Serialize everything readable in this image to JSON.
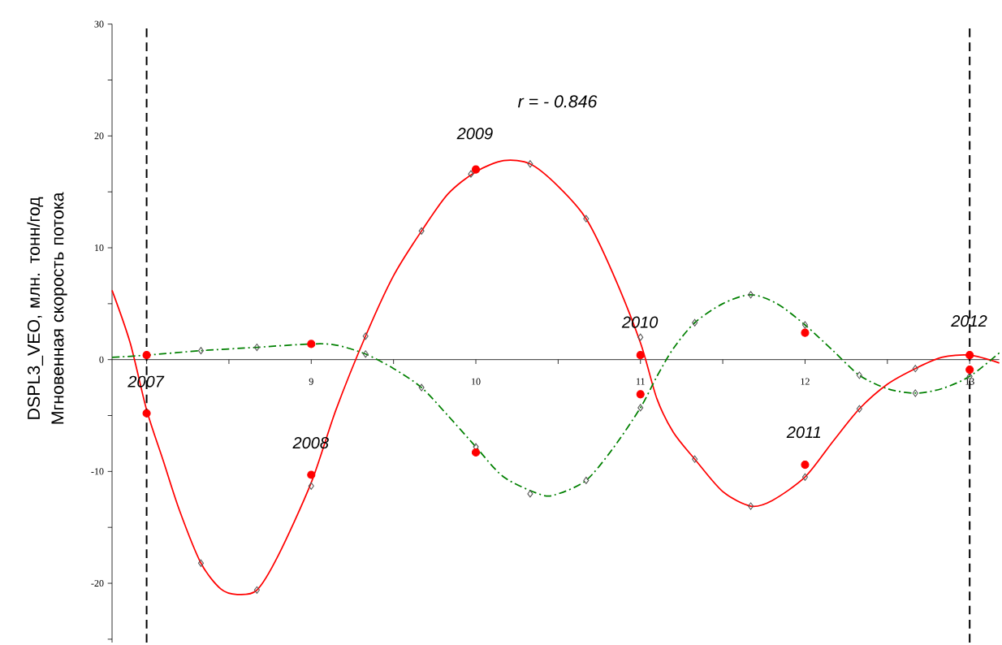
{
  "chart_data": {
    "type": "line",
    "ylabel": "DSPL3_VEO, млн. тонн/год Мгновенная скорость потока",
    "xlim": [
      7.79,
      13.18
    ],
    "ylim": [
      -25.3,
      30
    ],
    "xticks": [
      {
        "value": 8,
        "label": null
      },
      {
        "value": 8.5,
        "label": null
      },
      9,
      {
        "value": 9.5,
        "label": null
      },
      10,
      {
        "value": 10.5,
        "label": null
      },
      11,
      {
        "value": 11.5,
        "label": null
      },
      12,
      {
        "value": 12.5,
        "label": null
      },
      13
    ],
    "yticks": [
      {
        "value": -25,
        "label": null
      },
      -20,
      {
        "value": -15,
        "label": null
      },
      -10,
      {
        "value": -5,
        "label": null
      },
      0,
      {
        "value": 5,
        "label": null
      },
      10,
      {
        "value": 15,
        "label": null
      },
      20,
      {
        "value": 25,
        "label": null
      },
      30
    ],
    "series": [
      {
        "color": "#ff0000",
        "marker": "none",
        "line_style": "solid",
        "x": [
          7.79,
          7.9,
          8,
          8.1,
          8.2,
          8.33,
          8.45,
          8.55,
          8.67,
          8.8,
          9,
          9.15,
          9.33,
          9.5,
          9.67,
          9.83,
          10,
          10.17,
          10.33,
          10.5,
          10.67,
          10.83,
          11,
          11.1,
          11.2,
          11.33,
          11.5,
          11.67,
          11.8,
          12,
          12.17,
          12.33,
          12.5,
          12.67,
          12.83,
          13,
          13.18
        ],
        "values": [
          6.2,
          1.5,
          -4.5,
          -9,
          -13.5,
          -18.2,
          -20.5,
          -21,
          -20.6,
          -17.5,
          -11,
          -4.5,
          2.1,
          7.5,
          11.5,
          14.8,
          16.8,
          17.8,
          17.5,
          15.5,
          12.6,
          7.8,
          1.5,
          -3.5,
          -6.5,
          -8.9,
          -11.8,
          -13.1,
          -12.6,
          -10.5,
          -7.3,
          -4.4,
          -2.2,
          -0.8,
          0.2,
          0.4,
          -0.3
        ]
      },
      {
        "color": "#008000",
        "marker": "none",
        "line_style": "dashed",
        "x": [
          7.79,
          8,
          8.33,
          8.67,
          9,
          9.15,
          9.33,
          9.5,
          9.67,
          9.83,
          10,
          10.17,
          10.4,
          10.5,
          10.67,
          10.83,
          11,
          11.1,
          11.2,
          11.33,
          11.5,
          11.67,
          11.83,
          12,
          12.17,
          12.33,
          12.5,
          12.67,
          12.83,
          13,
          13.18
        ],
        "values": [
          0.2,
          0.4,
          0.8,
          1.1,
          1.4,
          1.3,
          0.5,
          -0.8,
          -2.5,
          -5,
          -7.8,
          -10.5,
          -12.1,
          -12,
          -10.8,
          -8,
          -4.3,
          -1.5,
          1,
          3.3,
          5,
          5.8,
          5,
          3.1,
          0.8,
          -1.4,
          -2.6,
          -3,
          -2.6,
          -1.5,
          0.6
        ]
      },
      {
        "type": "scatter",
        "color": "#555555",
        "marker": "diamond",
        "x": [
          8.33,
          8.67,
          9,
          9.33,
          9.67,
          9.97,
          10.33,
          10.67,
          11,
          11.33,
          11.67,
          12,
          12.33,
          12.67
        ],
        "values": [
          -18.2,
          -20.6,
          -11.3,
          2.1,
          11.5,
          16.6,
          17.5,
          12.6,
          2,
          -8.9,
          -13.1,
          -10.5,
          -4.4,
          -0.8
        ]
      },
      {
        "type": "scatter",
        "color": "#555555",
        "marker": "diamond",
        "x": [
          8.33,
          8.67,
          9.33,
          9.67,
          10,
          10.33,
          10.67,
          11,
          11.33,
          11.67,
          12,
          12.33,
          12.67,
          13
        ],
        "values": [
          0.8,
          1.1,
          0.5,
          -2.5,
          -7.8,
          -12,
          -10.8,
          -4.3,
          3.3,
          5.8,
          3.1,
          -1.4,
          -3,
          -1.5
        ]
      },
      {
        "type": "scatter",
        "color": "#ff0000",
        "marker": "circle",
        "x": [
          8,
          9,
          10,
          11,
          12,
          13
        ],
        "values": [
          -4.8,
          -10.3,
          17,
          0.4,
          -9.4,
          0.4
        ]
      },
      {
        "type": "scatter",
        "color": "#ff0000",
        "marker": "circle",
        "x": [
          8,
          9,
          10,
          11,
          12,
          13
        ],
        "values": [
          0.4,
          1.4,
          -8.3,
          -3.1,
          2.4,
          -0.9
        ]
      }
    ],
    "ref_lines": [
      {
        "axis": "x",
        "value": 8,
        "line_style": "dashed",
        "color": "#000000"
      },
      {
        "axis": "x",
        "value": 13,
        "line_style": "dashed",
        "color": "#000000"
      }
    ],
    "annotations": [
      "r = - 0.846",
      "2007",
      "2008",
      "2009",
      "2010",
      "2011",
      "2012"
    ]
  }
}
